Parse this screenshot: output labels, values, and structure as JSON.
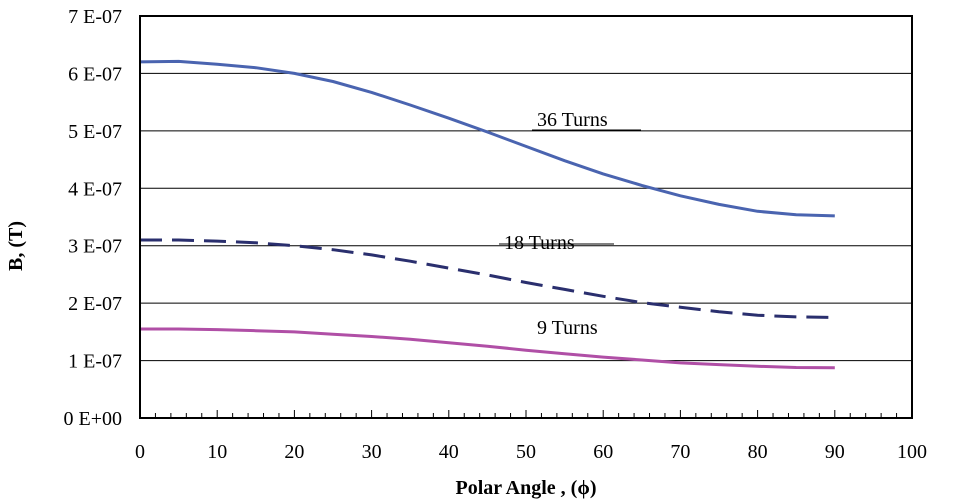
{
  "chart_data": {
    "type": "line",
    "xlabel": "Polar Angle , (ϕ)",
    "ylabel": "B, (T)",
    "xlim": [
      0,
      100
    ],
    "ylim": [
      0,
      7e-07
    ],
    "xticks": [
      0,
      10,
      20,
      30,
      40,
      50,
      60,
      70,
      80,
      90,
      100
    ],
    "xtick_labels": [
      "0",
      "10",
      "20",
      "30",
      "40",
      "50",
      "60",
      "70",
      "80",
      "90",
      "100"
    ],
    "yticks": [
      0,
      1e-07,
      2e-07,
      3e-07,
      4e-07,
      5e-07,
      6e-07,
      7e-07
    ],
    "ytick_labels": [
      "0 E+00",
      "1 E-07",
      "2 E-07",
      "3 E-07",
      "4 E-07",
      "5 E-07",
      "6 E-07",
      "7 E-07"
    ],
    "grid": "horizontal",
    "series": [
      {
        "name": "36 Turns",
        "color": "#4a64b0",
        "dash": "solid",
        "x": [
          0,
          5,
          10,
          15,
          20,
          25,
          30,
          35,
          40,
          45,
          50,
          55,
          60,
          65,
          70,
          75,
          80,
          85,
          90
        ],
        "y": [
          6.2e-07,
          6.21e-07,
          6.16e-07,
          6.1e-07,
          6e-07,
          5.86e-07,
          5.67e-07,
          5.45e-07,
          5.22e-07,
          4.98e-07,
          4.73e-07,
          4.48e-07,
          4.25e-07,
          4.05e-07,
          3.87e-07,
          3.72e-07,
          3.6e-07,
          3.54e-07,
          3.52e-07
        ]
      },
      {
        "name": "18 Turns",
        "color": "#2a2f6e",
        "dash": "dashed",
        "x": [
          0,
          5,
          10,
          15,
          20,
          25,
          30,
          35,
          40,
          45,
          50,
          55,
          60,
          65,
          70,
          75,
          80,
          85,
          90
        ],
        "y": [
          3.1e-07,
          3.1e-07,
          3.08e-07,
          3.05e-07,
          3e-07,
          2.93e-07,
          2.84e-07,
          2.73e-07,
          2.61e-07,
          2.49e-07,
          2.36e-07,
          2.24e-07,
          2.12e-07,
          2.01e-07,
          1.93e-07,
          1.85e-07,
          1.79e-07,
          1.76e-07,
          1.75e-07
        ]
      },
      {
        "name": "9 Turns",
        "color": "#b04fa6",
        "dash": "solid",
        "x": [
          0,
          5,
          10,
          15,
          20,
          25,
          30,
          35,
          40,
          45,
          50,
          55,
          60,
          65,
          70,
          75,
          80,
          85,
          90
        ],
        "y": [
          1.55e-07,
          1.55e-07,
          1.54e-07,
          1.52e-07,
          1.5e-07,
          1.46e-07,
          1.42e-07,
          1.37e-07,
          1.31e-07,
          1.25e-07,
          1.18e-07,
          1.12e-07,
          1.06e-07,
          1.01e-07,
          9.6e-08,
          9.3e-08,
          9e-08,
          8.8e-08,
          8.75e-08
        ]
      }
    ],
    "annotations": [
      "36 Turns",
      "18 Turns",
      "9 Turns"
    ]
  }
}
